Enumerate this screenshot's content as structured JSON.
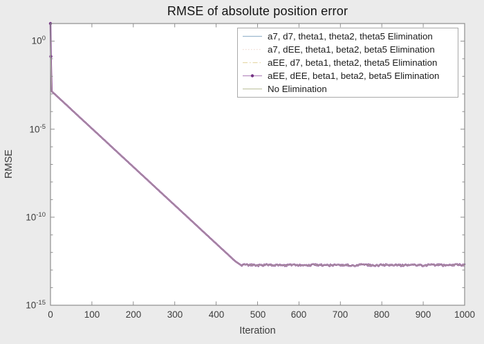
{
  "chart_data": {
    "type": "line",
    "title": "RMSE of absolute position error",
    "xlabel": "Iteration",
    "ylabel": "RMSE",
    "xlim": [
      0,
      1000
    ],
    "ylim_log10": [
      -15,
      1
    ],
    "grid": false,
    "legend_position": "northeast",
    "x_ticks": [
      0,
      100,
      200,
      300,
      400,
      500,
      600,
      700,
      800,
      900,
      1000
    ],
    "y_ticks": [
      {
        "base": "10",
        "exp": "0"
      },
      {
        "base": "10",
        "exp": "-5"
      },
      {
        "base": "10",
        "exp": "-10"
      },
      {
        "base": "10",
        "exp": "-15"
      }
    ],
    "series": [
      {
        "label": "a7, d7, theta1, theta2, theta5 Elimination",
        "color": "#9db8ce",
        "dash": "5,3",
        "width": 1
      },
      {
        "label": "a7, dEE, theta1, beta2, beta5 Elimination",
        "color": "#f0dcd2",
        "dash": "1.5,2.5",
        "width": 1
      },
      {
        "label": "aEE, d7, beta1, theta2, theta5 Elimination",
        "color": "#e7d9ab",
        "dash": "7,3,1.5,3",
        "width": 1
      },
      {
        "label": "aEE, dEE, beta1, beta2, beta5 Elimination",
        "color": "#7e3390",
        "dash": "",
        "width": 2.4,
        "marker": "point",
        "marker_color": "#733083"
      },
      {
        "label": "No Elimination",
        "color": "#c3c8a9",
        "dash": "",
        "width": 0.9
      }
    ],
    "series_note": "All five series coincide on the same curve; rendered from the shared profile below.",
    "profile_log10": [
      [
        0,
        1.0
      ],
      [
        1,
        -0.87
      ],
      [
        3,
        -2.85
      ],
      [
        446,
        -12.5
      ],
      [
        460,
        -12.72
      ],
      [
        1000,
        -12.72
      ]
    ],
    "flat_level_log10": -12.72,
    "flat_start_iter": 462,
    "flat_noise_log10": 0.06
  }
}
